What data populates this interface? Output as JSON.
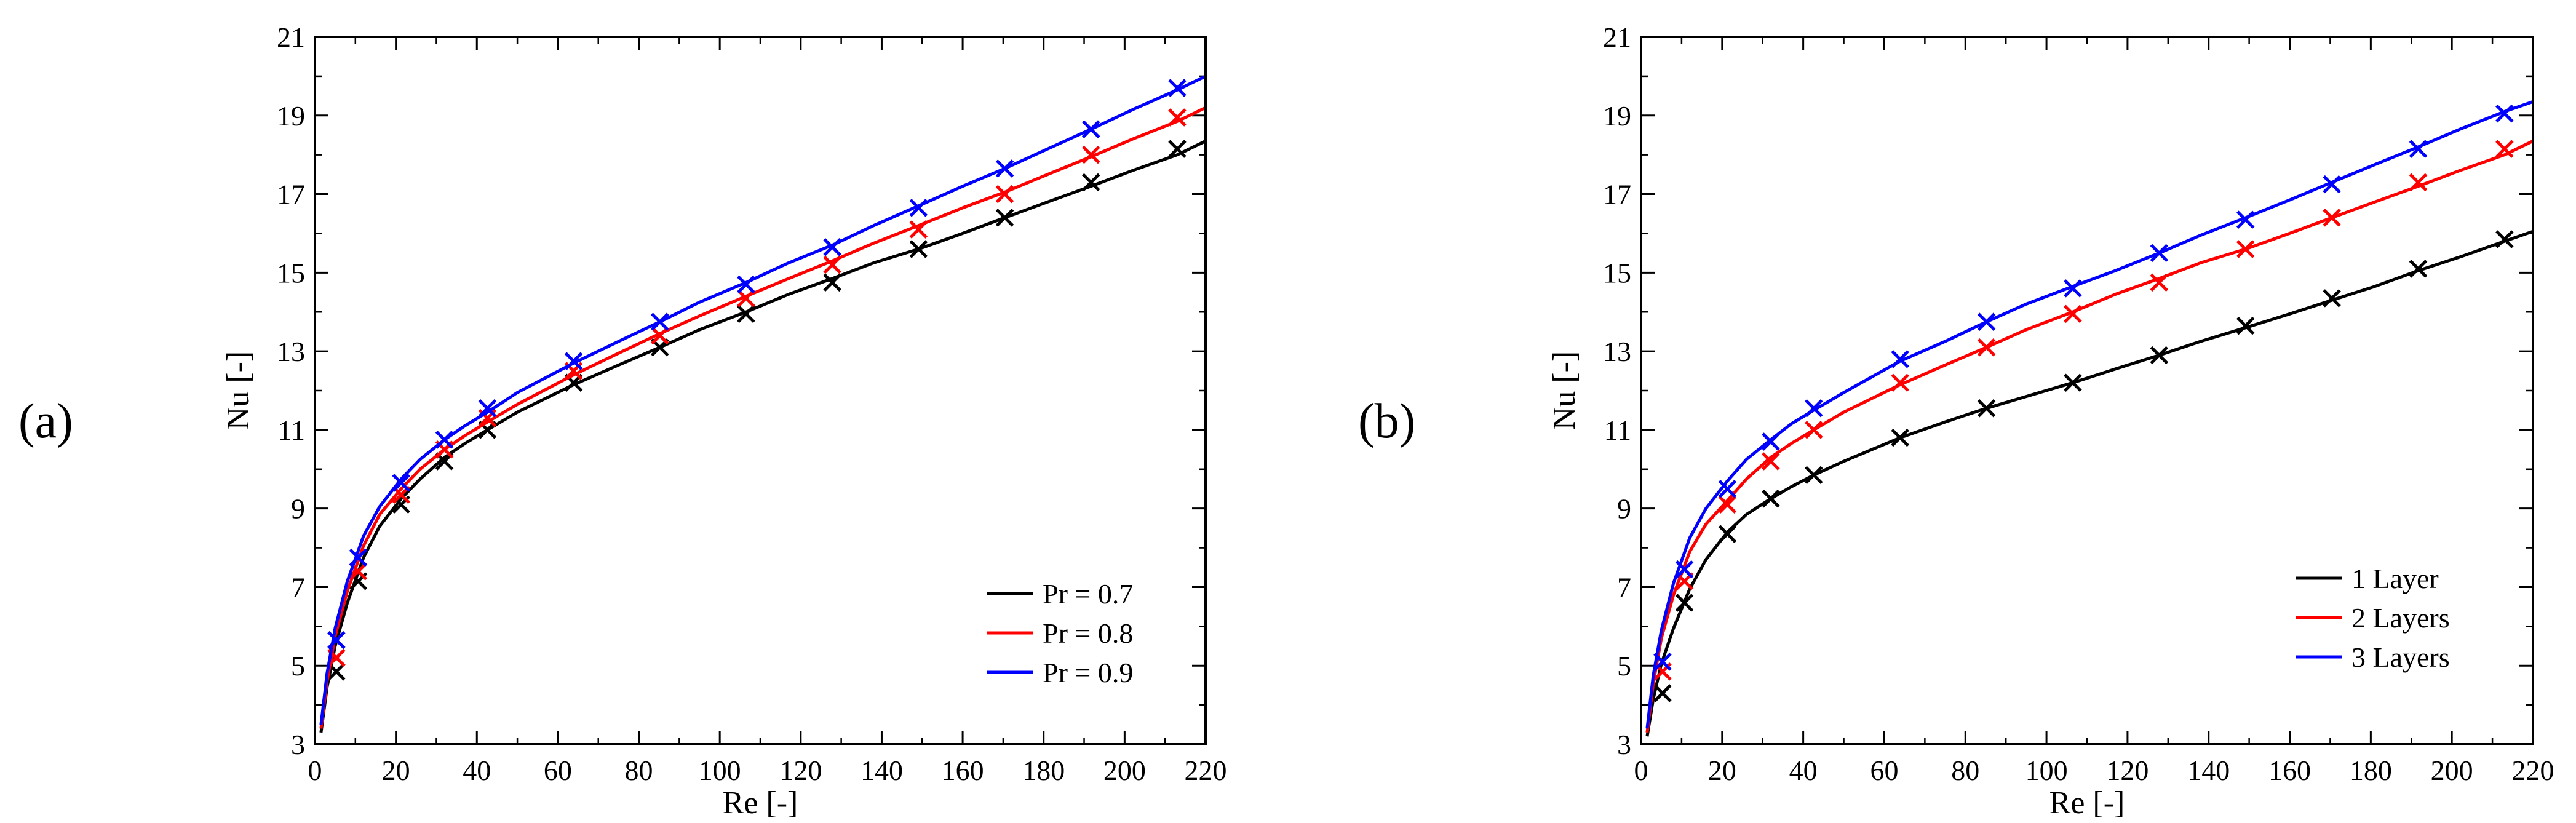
{
  "panel_labels": [
    "(a)",
    "(b)"
  ],
  "chart_data": [
    {
      "type": "line",
      "panel": "(a)",
      "xlabel": "Re [-]",
      "ylabel": "Nu [-]",
      "xlim": [
        0,
        220
      ],
      "ylim": [
        3,
        21
      ],
      "xticks": [
        0,
        20,
        40,
        60,
        80,
        100,
        120,
        140,
        160,
        180,
        200,
        220
      ],
      "yticks": [
        3,
        5,
        7,
        9,
        11,
        13,
        15,
        17,
        19,
        21
      ],
      "legend_position": "bottom-right",
      "series": [
        {
          "name": "Pr = 0.7",
          "color": "#000000",
          "line_x": [
            1.5,
            3,
            5,
            8,
            12,
            16,
            21.3,
            26,
            32,
            37,
            42.6,
            50,
            63.9,
            75,
            85.2,
            95,
            106.5,
            117,
            127.8,
            138,
            149.1,
            160,
            170.4,
            181,
            191.7,
            202,
            213,
            220
          ],
          "line_y": [
            3.3,
            4.45,
            5.5,
            6.6,
            7.75,
            8.55,
            9.25,
            9.75,
            10.3,
            10.65,
            11.0,
            11.45,
            12.15,
            12.65,
            13.1,
            13.55,
            14.0,
            14.45,
            14.85,
            15.25,
            15.6,
            16.0,
            16.4,
            16.8,
            17.2,
            17.6,
            18.0,
            18.35
          ],
          "markers_x": [
            5.3,
            10.7,
            21.3,
            32.0,
            42.6,
            63.9,
            85.2,
            106.5,
            127.8,
            149.1,
            170.4,
            191.7,
            213.0
          ],
          "markers_y": [
            4.85,
            7.15,
            9.1,
            10.2,
            11.0,
            12.2,
            13.1,
            13.95,
            14.75,
            15.6,
            16.4,
            17.3,
            18.15
          ]
        },
        {
          "name": "Pr = 0.8",
          "color": "#ff0000",
          "line_x": [
            1.5,
            3,
            5,
            8,
            12,
            16,
            21.3,
            26,
            32,
            37,
            42.6,
            50,
            63.9,
            75,
            85.2,
            95,
            106.5,
            117,
            127.8,
            138,
            149.1,
            160,
            170.4,
            181,
            191.7,
            202,
            213,
            220
          ],
          "line_y": [
            3.4,
            4.6,
            5.75,
            6.9,
            8.05,
            8.85,
            9.5,
            10.0,
            10.5,
            10.85,
            11.2,
            11.65,
            12.4,
            12.95,
            13.45,
            13.9,
            14.4,
            14.85,
            15.3,
            15.75,
            16.2,
            16.65,
            17.05,
            17.5,
            17.95,
            18.4,
            18.85,
            19.2
          ],
          "markers_x": [
            5.3,
            10.7,
            21.3,
            32.0,
            42.6,
            63.9,
            85.2,
            106.5,
            127.8,
            149.1,
            170.4,
            191.7,
            213.0
          ],
          "markers_y": [
            5.2,
            7.4,
            9.35,
            10.5,
            11.3,
            12.5,
            13.4,
            14.35,
            15.2,
            16.1,
            17.0,
            18.0,
            18.95
          ]
        },
        {
          "name": "Pr = 0.9",
          "color": "#0000ff",
          "line_x": [
            1.5,
            3,
            5,
            8,
            12,
            16,
            21.3,
            26,
            32,
            37,
            42.6,
            50,
            63.9,
            75,
            85.2,
            95,
            106.5,
            117,
            127.8,
            138,
            149.1,
            160,
            170.4,
            181,
            191.7,
            202,
            213,
            220
          ],
          "line_y": [
            3.5,
            4.8,
            5.95,
            7.15,
            8.3,
            9.05,
            9.75,
            10.25,
            10.75,
            11.1,
            11.45,
            11.95,
            12.7,
            13.25,
            13.75,
            14.25,
            14.75,
            15.25,
            15.7,
            16.2,
            16.7,
            17.2,
            17.65,
            18.15,
            18.65,
            19.15,
            19.65,
            20.0
          ],
          "markers_x": [
            5.3,
            10.7,
            21.3,
            32.0,
            42.6,
            63.9,
            85.2,
            106.5,
            127.8,
            149.1,
            170.4,
            191.7,
            213.0
          ],
          "markers_y": [
            5.65,
            7.75,
            9.65,
            10.75,
            11.55,
            12.75,
            13.75,
            14.7,
            15.65,
            16.65,
            17.65,
            18.65,
            19.7
          ]
        }
      ]
    },
    {
      "type": "line",
      "panel": "(b)",
      "xlabel": "Re [-]",
      "ylabel": "Nu [-]",
      "xlim": [
        0,
        220
      ],
      "ylim": [
        3,
        21
      ],
      "xticks": [
        0,
        20,
        40,
        60,
        80,
        100,
        120,
        140,
        160,
        180,
        200,
        220
      ],
      "yticks": [
        3,
        5,
        7,
        9,
        11,
        13,
        15,
        17,
        19,
        21
      ],
      "legend_position": "bottom-right",
      "series": [
        {
          "name": "1 Layer",
          "color": "#000000",
          "line_x": [
            1.5,
            3,
            5,
            8,
            12,
            16,
            21.3,
            26,
            32,
            37,
            42.6,
            50,
            63.9,
            75,
            85.2,
            95,
            106.5,
            117,
            127.8,
            138,
            149.1,
            160,
            170.4,
            181,
            191.7,
            202,
            213,
            220
          ],
          "line_y": [
            3.2,
            4.15,
            5.05,
            5.95,
            6.95,
            7.7,
            8.4,
            8.85,
            9.25,
            9.55,
            9.85,
            10.2,
            10.8,
            11.2,
            11.55,
            11.85,
            12.2,
            12.55,
            12.9,
            13.25,
            13.6,
            13.95,
            14.3,
            14.65,
            15.05,
            15.4,
            15.8,
            16.05
          ],
          "markers_x": [
            5.3,
            10.7,
            21.3,
            32.0,
            42.6,
            63.9,
            85.2,
            106.5,
            127.8,
            149.1,
            170.4,
            191.7,
            213.0
          ],
          "markers_y": [
            4.3,
            6.6,
            8.35,
            9.25,
            9.85,
            10.8,
            11.55,
            12.2,
            12.9,
            13.65,
            14.35,
            15.1,
            15.85
          ]
        },
        {
          "name": "2 Layers",
          "color": "#ff0000",
          "line_x": [
            1.5,
            3,
            5,
            8,
            12,
            16,
            21.3,
            26,
            32,
            37,
            42.6,
            50,
            63.9,
            75,
            85.2,
            95,
            106.5,
            117,
            127.8,
            138,
            149.1,
            160,
            170.4,
            181,
            191.7,
            202,
            213,
            220
          ],
          "line_y": [
            3.3,
            4.55,
            5.7,
            6.8,
            7.9,
            8.6,
            9.2,
            9.75,
            10.3,
            10.65,
            11.0,
            11.45,
            12.15,
            12.65,
            13.1,
            13.55,
            14.0,
            14.45,
            14.85,
            15.25,
            15.6,
            16.0,
            16.4,
            16.8,
            17.2,
            17.6,
            18.0,
            18.35
          ],
          "markers_x": [
            5.3,
            10.7,
            21.3,
            32.0,
            42.6,
            63.9,
            85.2,
            106.5,
            127.8,
            149.1,
            170.4,
            191.7,
            213.0
          ],
          "markers_y": [
            4.85,
            7.15,
            9.1,
            10.2,
            11.0,
            12.2,
            13.1,
            13.95,
            14.75,
            15.6,
            16.4,
            17.3,
            18.15
          ]
        },
        {
          "name": "3 Layers",
          "color": "#0000ff",
          "line_x": [
            1.5,
            3,
            5,
            8,
            12,
            16,
            21.3,
            26,
            32,
            37,
            42.6,
            50,
            63.9,
            75,
            85.2,
            95,
            106.5,
            117,
            127.8,
            138,
            149.1,
            160,
            170.4,
            181,
            191.7,
            202,
            213,
            220
          ],
          "line_y": [
            3.4,
            4.75,
            5.9,
            7.1,
            8.25,
            9.0,
            9.7,
            10.25,
            10.75,
            11.15,
            11.5,
            11.95,
            12.75,
            13.25,
            13.75,
            14.2,
            14.65,
            15.05,
            15.5,
            15.95,
            16.4,
            16.85,
            17.3,
            17.75,
            18.2,
            18.65,
            19.1,
            19.35
          ],
          "markers_x": [
            5.3,
            10.7,
            21.3,
            32.0,
            42.6,
            63.9,
            85.2,
            106.5,
            127.8,
            149.1,
            170.4,
            191.7,
            213.0
          ],
          "markers_y": [
            5.1,
            7.45,
            9.5,
            10.7,
            11.55,
            12.8,
            13.75,
            14.6,
            15.5,
            16.35,
            17.25,
            18.15,
            19.05
          ]
        }
      ]
    }
  ]
}
